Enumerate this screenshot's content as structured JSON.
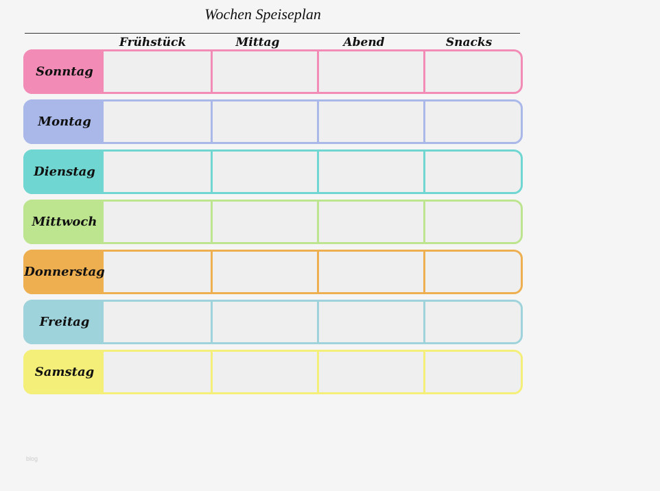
{
  "header": {
    "title": "Wochen Speiseplan"
  },
  "table": {
    "columns": [
      "Frühstück",
      "Mittag",
      "Abend",
      "Snacks"
    ],
    "rows": [
      {
        "day": "Sonntag",
        "color": "#f28cb6"
      },
      {
        "day": "Montag",
        "color": "#a9b8e8"
      },
      {
        "day": "Dienstag",
        "color": "#6fd6d2"
      },
      {
        "day": "Mittwoch",
        "color": "#bde48f"
      },
      {
        "day": "Donnerstag",
        "color": "#eeaf50"
      },
      {
        "day": "Freitag",
        "color": "#9fd3dc"
      },
      {
        "day": "Samstag",
        "color": "#f3ef78"
      }
    ]
  },
  "footer": {
    "watermark": "blog"
  }
}
